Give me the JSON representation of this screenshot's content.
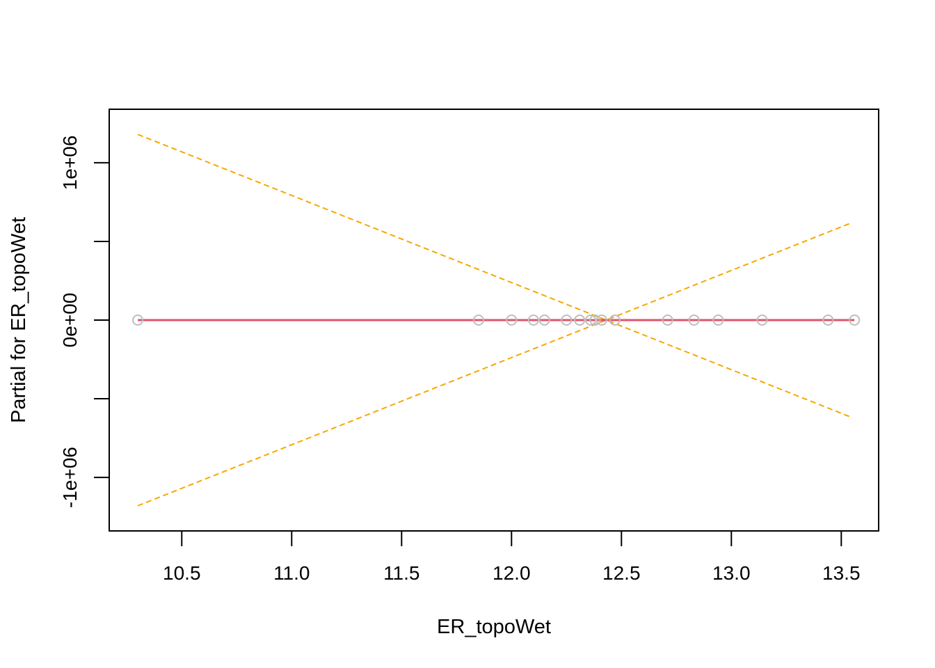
{
  "chart_data": {
    "type": "scatter",
    "title": "",
    "xlabel": "ER_topoWet",
    "ylabel": "Partial for ER_topoWet",
    "xlim": [
      10.17,
      13.67
    ],
    "ylim": [
      -1340000,
      1340000
    ],
    "x_ticks": [
      {
        "value": 10.5,
        "label": "10.5"
      },
      {
        "value": 11.0,
        "label": "11.0"
      },
      {
        "value": 11.5,
        "label": "11.5"
      },
      {
        "value": 12.0,
        "label": "12.0"
      },
      {
        "value": 12.5,
        "label": "12.5"
      },
      {
        "value": 13.0,
        "label": "13.0"
      },
      {
        "value": 13.5,
        "label": "13.5"
      }
    ],
    "y_ticks": [
      {
        "value": -1000000,
        "label": "-1e+06"
      },
      {
        "value": -500000,
        "label": ""
      },
      {
        "value": 0,
        "label": "0e+00"
      },
      {
        "value": 500000,
        "label": ""
      },
      {
        "value": 1000000,
        "label": "1e+06"
      }
    ],
    "points": {
      "x": [
        10.3,
        11.85,
        12.0,
        12.1,
        12.15,
        12.25,
        12.31,
        12.36,
        12.38,
        12.41,
        12.47,
        12.71,
        12.83,
        12.94,
        13.14,
        13.44,
        13.56
      ],
      "y": [
        0,
        0,
        0,
        0,
        0,
        0,
        0,
        0,
        0,
        0,
        0,
        0,
        0,
        0,
        0,
        0,
        0
      ]
    },
    "fit_line": {
      "x": [
        10.3,
        13.56
      ],
      "y": [
        0,
        0
      ]
    },
    "confidence_band": {
      "upper": {
        "x": [
          10.3,
          13.55
        ],
        "y": [
          1180000,
          -620000
        ]
      },
      "lower": {
        "x": [
          10.3,
          13.55
        ],
        "y": [
          -1180000,
          620000
        ]
      }
    },
    "grid": false,
    "legend": "none",
    "colors": {
      "points": "#bebebe",
      "fit_line": "#df536b",
      "confidence_band": "#f5a800",
      "axes": "#000000"
    }
  }
}
